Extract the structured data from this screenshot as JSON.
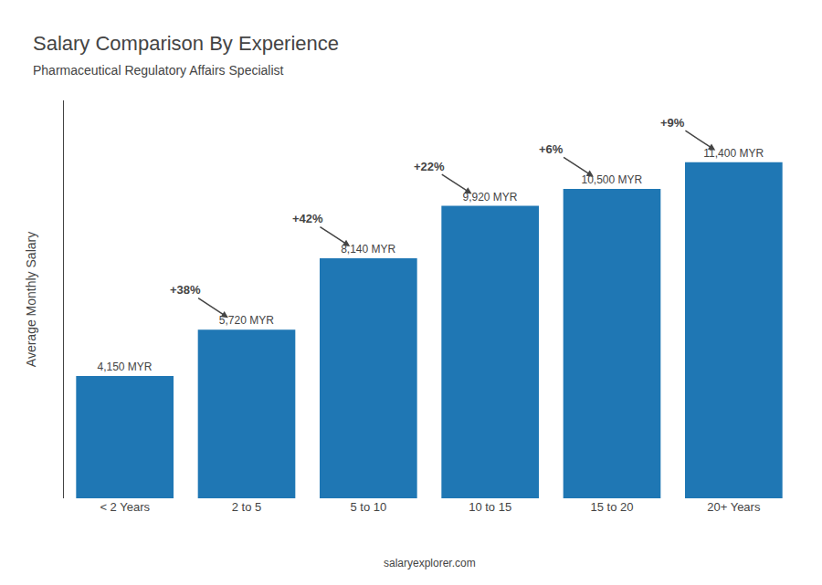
{
  "chart_data": {
    "type": "bar",
    "title": "Salary Comparison By Experience",
    "subtitle": "Pharmaceutical Regulatory Affairs Specialist",
    "categories": [
      "< 2 Years",
      "2 to 5",
      "5 to 10",
      "10 to 15",
      "15 to 20",
      "20+ Years"
    ],
    "values": [
      4150,
      5720,
      8140,
      9920,
      10500,
      11400
    ],
    "value_labels": [
      "4,150 MYR",
      "5,720 MYR",
      "8,140 MYR",
      "9,920 MYR",
      "10,500 MYR",
      "11,400 MYR"
    ],
    "data_labels": true,
    "ylabel": "Average Monthly Salary",
    "ylim": [
      0,
      13500
    ],
    "tick_labels": "x",
    "grid": false,
    "annotations": [
      {
        "from": "< 2 Years",
        "to": "2 to 5",
        "text": "+38%"
      },
      {
        "from": "2 to 5",
        "to": "5 to 10",
        "text": "+42%"
      },
      {
        "from": "5 to 10",
        "to": "10 to 15",
        "text": "+22%"
      },
      {
        "from": "10 to 15",
        "to": "15 to 20",
        "text": "+6%"
      },
      {
        "from": "15 to 20",
        "to": "20+ Years",
        "text": "+9%"
      }
    ],
    "footer": "salaryexplorer.com"
  }
}
